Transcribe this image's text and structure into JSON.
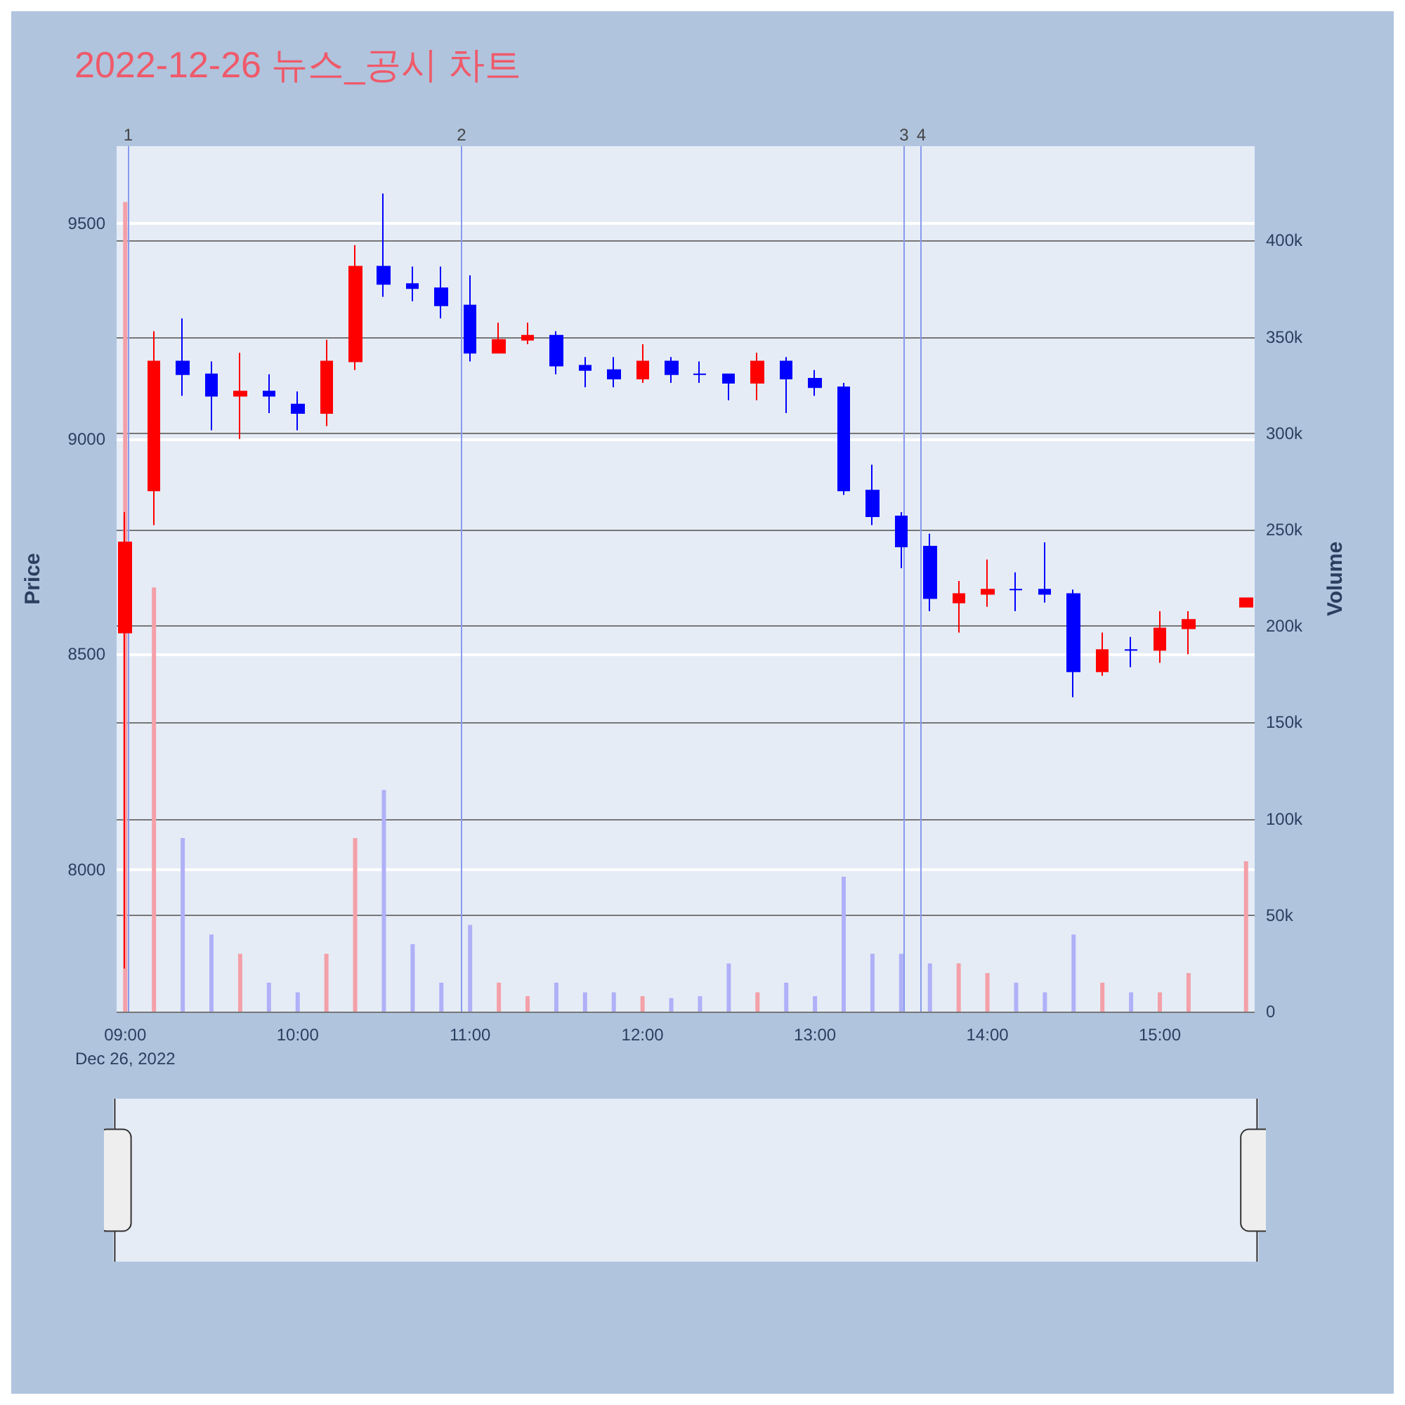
{
  "chart_data": {
    "type": "candlestick",
    "title": "2022-12-26 뉴스_공시 차트",
    "ylabel": "Price",
    "y2label": "Volume",
    "xlim": [
      "2022-12-26T08:57",
      "2022-12-26T15:33"
    ],
    "xticks": [
      {
        "value": "2022-12-26T09:00",
        "label": "09:00\nDec 26, 2022"
      },
      {
        "value": "2022-12-26T10:00",
        "label": "10:00"
      },
      {
        "value": "2022-12-26T11:00",
        "label": "11:00"
      },
      {
        "value": "2022-12-26T12:00",
        "label": "12:00"
      },
      {
        "value": "2022-12-26T13:00",
        "label": "13:00"
      },
      {
        "value": "2022-12-26T14:00",
        "label": "14:00"
      },
      {
        "value": "2022-12-26T15:00",
        "label": "15:00"
      }
    ],
    "ylim": [
      7670,
      9680
    ],
    "yticks": [
      8000,
      8500,
      9000,
      9500
    ],
    "y2lim": [
      0,
      449000
    ],
    "y2ticks": [
      0,
      {
        "value": 50000,
        "label": "50k"
      },
      {
        "value": 100000,
        "label": "100k"
      },
      {
        "value": 150000,
        "label": "150k"
      },
      {
        "value": 200000,
        "label": "200k"
      },
      {
        "value": 250000,
        "label": "250k"
      },
      {
        "value": 300000,
        "label": "300k"
      },
      {
        "value": 350000,
        "label": "350k"
      },
      {
        "value": 400000,
        "label": "400k"
      }
    ],
    "grid": "y",
    "series": [
      {
        "colors": [
          "#ff0000",
          "#ff0000",
          "#0000ff",
          "#0000ff",
          "#ff0000",
          "#0000ff",
          "#0000ff",
          "#ff0000",
          "#ff0000",
          "#0000ff",
          "#0000ff",
          "#0000ff",
          "#0000ff",
          "#ff0000",
          "#ff0000",
          "#0000ff",
          "#0000ff",
          "#0000ff",
          "#ff0000",
          "#0000ff",
          "#0000ff",
          "#0000ff",
          "#ff0000",
          "#0000ff",
          "#0000ff",
          "#0000ff",
          "#0000ff",
          "#0000ff",
          "#0000ff",
          "#ff0000",
          "#ff0000",
          "#0000ff",
          "#0000ff",
          "#0000ff",
          "#ff0000",
          "#0000ff",
          "#ff0000",
          "#ff0000",
          "#ff0000"
        ],
        "x": [
          "2022-12-26T09:00",
          "2022-12-26T09:10",
          "2022-12-26T09:20",
          "2022-12-26T09:30",
          "2022-12-26T09:40",
          "2022-12-26T09:50",
          "2022-12-26T10:00",
          "2022-12-26T10:10",
          "2022-12-26T10:20",
          "2022-12-26T10:30",
          "2022-12-26T10:40",
          "2022-12-26T10:50",
          "2022-12-26T11:00",
          "2022-12-26T11:10",
          "2022-12-26T11:20",
          "2022-12-26T11:30",
          "2022-12-26T11:40",
          "2022-12-26T11:50",
          "2022-12-26T12:00",
          "2022-12-26T12:10",
          "2022-12-26T12:20",
          "2022-12-26T12:30",
          "2022-12-26T12:40",
          "2022-12-26T12:50",
          "2022-12-26T13:00",
          "2022-12-26T13:10",
          "2022-12-26T13:20",
          "2022-12-26T13:30",
          "2022-12-26T13:40",
          "2022-12-26T13:50",
          "2022-12-26T14:00",
          "2022-12-26T14:10",
          "2022-12-26T14:20",
          "2022-12-26T14:30",
          "2022-12-26T14:40",
          "2022-12-26T14:50",
          "2022-12-26T15:00",
          "2022-12-26T15:10",
          "2022-12-26T15:30"
        ],
        "ohlc": [
          [
            8550,
            8830,
            7770,
            8760
          ],
          [
            8880,
            9250,
            8800,
            9180
          ],
          [
            9180,
            9280,
            9100,
            9150
          ],
          [
            9150,
            9180,
            9020,
            9100
          ],
          [
            9100,
            9200,
            9000,
            9110
          ],
          [
            9110,
            9150,
            9060,
            9100
          ],
          [
            9080,
            9110,
            9020,
            9060
          ],
          [
            9060,
            9230,
            9030,
            9180
          ],
          [
            9180,
            9450,
            9160,
            9400
          ],
          [
            9400,
            9570,
            9330,
            9360
          ],
          [
            9360,
            9400,
            9320,
            9350
          ],
          [
            9350,
            9400,
            9280,
            9310
          ],
          [
            9310,
            9380,
            9180,
            9200
          ],
          [
            9200,
            9270,
            9200,
            9230
          ],
          [
            9230,
            9270,
            9220,
            9240
          ],
          [
            9240,
            9250,
            9150,
            9170
          ],
          [
            9170,
            9190,
            9120,
            9160
          ],
          [
            9160,
            9190,
            9120,
            9140
          ],
          [
            9140,
            9220,
            9130,
            9180
          ],
          [
            9180,
            9190,
            9130,
            9150
          ],
          [
            9150,
            9180,
            9130,
            9150
          ],
          [
            9150,
            9150,
            9090,
            9130
          ],
          [
            9130,
            9200,
            9090,
            9180
          ],
          [
            9180,
            9190,
            9060,
            9140
          ],
          [
            9140,
            9160,
            9100,
            9120
          ],
          [
            9120,
            9130,
            8870,
            8880
          ],
          [
            8880,
            8940,
            8800,
            8820
          ],
          [
            8820,
            8830,
            8700,
            8750
          ],
          [
            8750,
            8780,
            8600,
            8630
          ],
          [
            8620,
            8670,
            8550,
            8640
          ],
          [
            8640,
            8720,
            8610,
            8650
          ],
          [
            8650,
            8690,
            8600,
            8650
          ],
          [
            8650,
            8760,
            8620,
            8640
          ],
          [
            8640,
            8650,
            8400,
            8460
          ],
          [
            8460,
            8550,
            8450,
            8510
          ],
          [
            8510,
            8540,
            8470,
            8510
          ],
          [
            8510,
            8600,
            8480,
            8560
          ],
          [
            8560,
            8600,
            8500,
            8580
          ],
          [
            8610,
            8630,
            8610,
            8630
          ]
        ]
      },
      {
        "type": "bar",
        "axis": "y2",
        "x": [
          "2022-12-26T09:00",
          "2022-12-26T09:10",
          "2022-12-26T09:20",
          "2022-12-26T09:30",
          "2022-12-26T09:40",
          "2022-12-26T09:50",
          "2022-12-26T10:00",
          "2022-12-26T10:10",
          "2022-12-26T10:20",
          "2022-12-26T10:30",
          "2022-12-26T10:40",
          "2022-12-26T10:50",
          "2022-12-26T11:00",
          "2022-12-26T11:10",
          "2022-12-26T11:20",
          "2022-12-26T11:30",
          "2022-12-26T11:40",
          "2022-12-26T11:50",
          "2022-12-26T12:00",
          "2022-12-26T12:10",
          "2022-12-26T12:20",
          "2022-12-26T12:30",
          "2022-12-26T12:40",
          "2022-12-26T12:50",
          "2022-12-26T13:00",
          "2022-12-26T13:10",
          "2022-12-26T13:20",
          "2022-12-26T13:30",
          "2022-12-26T13:40",
          "2022-12-26T13:50",
          "2022-12-26T14:00",
          "2022-12-26T14:10",
          "2022-12-26T14:20",
          "2022-12-26T14:30",
          "2022-12-26T14:40",
          "2022-12-26T14:50",
          "2022-12-26T15:00",
          "2022-12-26T15:10",
          "2022-12-26T15:30"
        ],
        "values": [
          420000,
          220000,
          90000,
          40000,
          30000,
          15000,
          10000,
          30000,
          90000,
          115000,
          35000,
          15000,
          45000,
          15000,
          8000,
          15000,
          10000,
          10000,
          8000,
          7000,
          8000,
          25000,
          10000,
          15000,
          8000,
          70000,
          30000,
          30000,
          25000,
          25000,
          20000,
          15000,
          10000,
          40000,
          15000,
          10000,
          10000,
          20000,
          78000
        ],
        "colors": [
          "#f4a0a8",
          "#f4a0a8",
          "#b0b0f8",
          "#b0b0f8",
          "#f4a0a8",
          "#b0b0f8",
          "#b0b0f8",
          "#f4a0a8",
          "#f4a0a8",
          "#b0b0f8",
          "#b0b0f8",
          "#b0b0f8",
          "#b0b0f8",
          "#f4a0a8",
          "#f4a0a8",
          "#b0b0f8",
          "#b0b0f8",
          "#b0b0f8",
          "#f4a0a8",
          "#b0b0f8",
          "#b0b0f8",
          "#b0b0f8",
          "#f4a0a8",
          "#b0b0f8",
          "#b0b0f8",
          "#b0b0f8",
          "#b0b0f8",
          "#b0b0f8",
          "#b0b0f8",
          "#f4a0a8",
          "#f4a0a8",
          "#b0b0f8",
          "#b0b0f8",
          "#b0b0f8",
          "#f4a0a8",
          "#b0b0f8",
          "#f4a0a8",
          "#f4a0a8",
          "#f4a0a8"
        ]
      }
    ],
    "ref_lines": [
      {
        "axis": "x",
        "value": "2022-12-26T09:01",
        "label": "1",
        "color": "#8899ee"
      },
      {
        "axis": "x",
        "value": "2022-12-26T10:57",
        "label": "2",
        "color": "#8899ee"
      },
      {
        "axis": "x",
        "value": "2022-12-26T13:31",
        "label": "3",
        "color": "#8899ee"
      },
      {
        "axis": "x",
        "value": "2022-12-26T13:37",
        "label": "4",
        "color": "#8899ee"
      }
    ]
  }
}
